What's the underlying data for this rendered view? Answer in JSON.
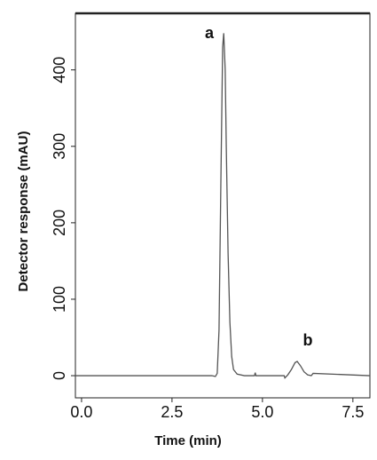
{
  "chart_data": {
    "type": "line",
    "x_label": "Time (min)",
    "y_label": "Detector response (mAU)",
    "annotations": [
      "a",
      "b"
    ],
    "xlim": [
      -0.17,
      7.97
    ],
    "ylim": [
      -29,
      474
    ],
    "xticks": [
      {
        "value": 0,
        "label": "0.0"
      },
      2.5,
      {
        "value": 5,
        "label": "5.0"
      },
      7.5
    ],
    "yticks": [
      0,
      100,
      200,
      300,
      400
    ],
    "grid": false,
    "series": [
      {
        "color": "#555555",
        "x": [
          -0.17,
          3.6,
          3.7,
          3.75,
          3.8,
          3.85,
          3.9,
          3.93,
          3.97,
          4.0,
          4.05,
          4.1,
          4.15,
          4.2,
          4.3,
          4.5,
          4.78,
          4.8,
          4.82,
          5.6,
          5.62,
          5.7,
          5.8,
          5.9,
          5.96,
          6.05,
          6.15,
          6.25,
          6.35,
          6.4,
          7.97
        ],
        "values": [
          0,
          0,
          -1,
          3,
          60,
          250,
          430,
          448,
          400,
          300,
          160,
          70,
          25,
          8,
          2,
          0,
          0,
          4,
          0,
          0,
          -3,
          1,
          8,
          17,
          18.6,
          13,
          5,
          1,
          0,
          3,
          0
        ]
      }
    ]
  }
}
